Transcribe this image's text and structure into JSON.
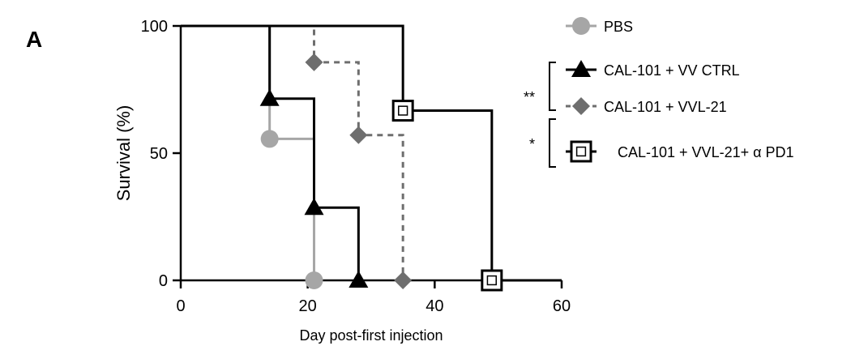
{
  "chart_data": {
    "type": "line",
    "panel_label": "A",
    "title": "",
    "xlabel": "Day post-first injection",
    "ylabel": "Survival (%)",
    "xlim": [
      0,
      60
    ],
    "ylim": [
      0,
      100
    ],
    "xticks": [
      0,
      20,
      40,
      60
    ],
    "yticks": [
      0,
      50,
      100
    ],
    "grid": false,
    "step": true,
    "legend_position": "right",
    "series": [
      {
        "name": "PBS",
        "color": "#a6a6a6",
        "dash": "solid",
        "marker": "circle",
        "x": [
          0,
          14,
          14,
          21,
          21
        ],
        "y": [
          100,
          100,
          55.6,
          55.6,
          0
        ],
        "marker_points": [
          [
            14,
            55.6
          ],
          [
            21,
            0
          ]
        ]
      },
      {
        "name": "CAL-101 + VV CTRL",
        "color": "#000000",
        "dash": "solid",
        "marker": "triangle",
        "x": [
          0,
          14,
          14,
          21,
          21,
          28,
          28
        ],
        "y": [
          100,
          100,
          71.4,
          71.4,
          28.6,
          28.6,
          0
        ],
        "marker_points": [
          [
            14,
            71.4
          ],
          [
            21,
            28.6
          ],
          [
            28,
            0
          ]
        ]
      },
      {
        "name": "CAL-101 + VVL-21",
        "color": "#6e6e6e",
        "dash": "dashed",
        "marker": "diamond",
        "x": [
          0,
          21,
          21,
          28,
          28,
          35,
          35
        ],
        "y": [
          100,
          100,
          85.7,
          85.7,
          57.1,
          57.1,
          0
        ],
        "marker_points": [
          [
            21,
            85.7
          ],
          [
            28,
            57.1
          ],
          [
            35,
            0
          ]
        ]
      },
      {
        "name": "CAL-101 + VVL-21+ α PD1",
        "color": "#000000",
        "dash": "solid",
        "marker": "square-open",
        "x": [
          0,
          35,
          35,
          49,
          49,
          60
        ],
        "y": [
          100,
          100,
          66.7,
          66.7,
          0,
          0
        ],
        "marker_points": [
          [
            35,
            66.7
          ],
          [
            49,
            0
          ]
        ]
      }
    ],
    "significance": [
      {
        "label": "**",
        "between": [
          "CAL-101 + VV CTRL",
          "CAL-101 + VVL-21"
        ]
      },
      {
        "label": "*",
        "between": [
          "CAL-101 + VVL-21",
          "CAL-101 + VVL-21+ α PD1"
        ]
      }
    ]
  }
}
